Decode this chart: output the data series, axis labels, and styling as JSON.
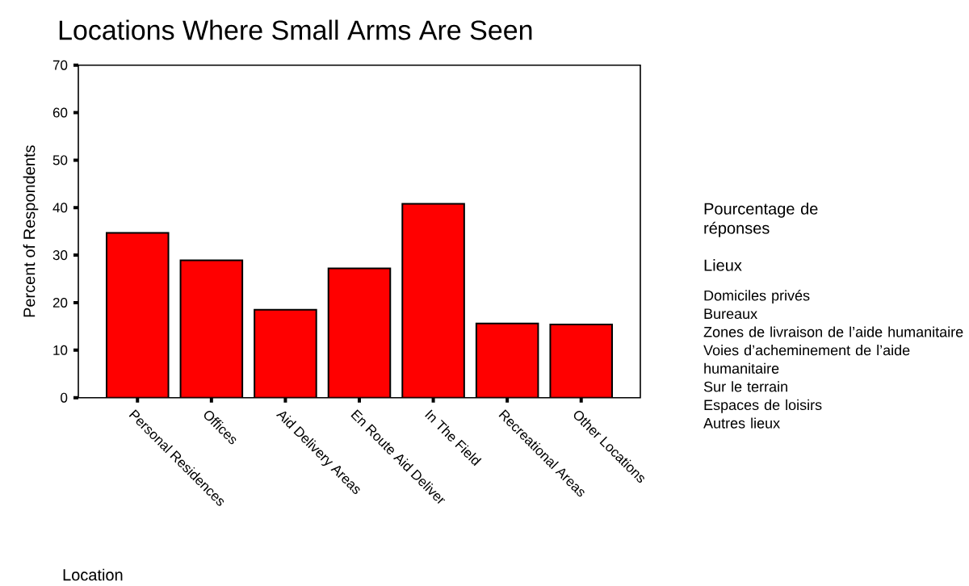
{
  "chart_data": {
    "type": "bar",
    "title": "Locations Where Small Arms Are Seen",
    "xlabel": "Location",
    "ylabel": "Percent of Respondents",
    "categories": [
      "Personal Residences",
      "Offices",
      "Aid Delivery Areas",
      "En Route Aid Deliver",
      "In The Field",
      "Recreational Areas",
      "Other Locations"
    ],
    "values": [
      34.7,
      28.9,
      18.5,
      27.2,
      40.8,
      15.6,
      15.4
    ],
    "color": "#ff0000",
    "ylim": [
      0,
      70
    ],
    "yticks": [
      0,
      10,
      20,
      30,
      40,
      50,
      60,
      70
    ],
    "annotations": [
      "Pourcentage de réponses",
      "Lieux",
      "Domiciles privés",
      "Bureaux",
      "Zones de livraison de l’aide humanitaire",
      "Voies d’acheminement de l’aide humanitaire",
      "Sur le terrain",
      "Espaces de loisirs",
      "Autres lieux"
    ]
  }
}
